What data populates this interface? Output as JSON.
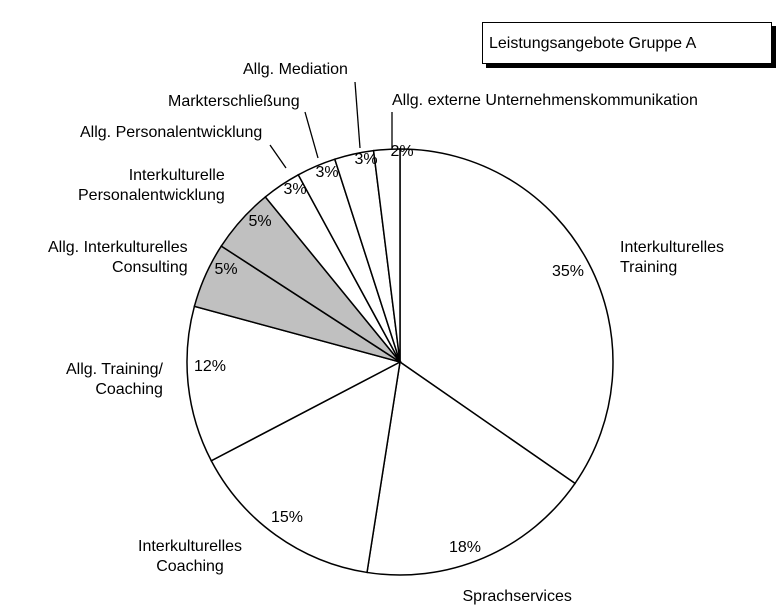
{
  "chart_data": {
    "type": "pie",
    "title": "Leistungsangebote Gruppe A",
    "categories": [
      "Interkulturelles\nTraining",
      "Sprachservices",
      "Interkulturelles\nCoaching",
      "Allg. Training/\nCoaching",
      "Allg. Interkulturelles\nConsulting",
      "Interkulturelle\nPersonalentwicklung",
      "Allg. Personalentwicklung",
      "Markterschließung",
      "Allg. Mediation",
      "Allg. externe Unternehmenskommunikation"
    ],
    "values": [
      35,
      18,
      15,
      12,
      5,
      5,
      3,
      3,
      3,
      2
    ],
    "value_labels": [
      "35%",
      "18%",
      "15%",
      "12%",
      "5%",
      "5%",
      "3%",
      "3%",
      "3%",
      "2%"
    ],
    "colors": [
      "#ffffff",
      "#ffffff",
      "#ffffff",
      "#ffffff",
      "#c0c0c0",
      "#c0c0c0",
      "#ffffff",
      "#ffffff",
      "#ffffff",
      "#ffffff"
    ]
  }
}
